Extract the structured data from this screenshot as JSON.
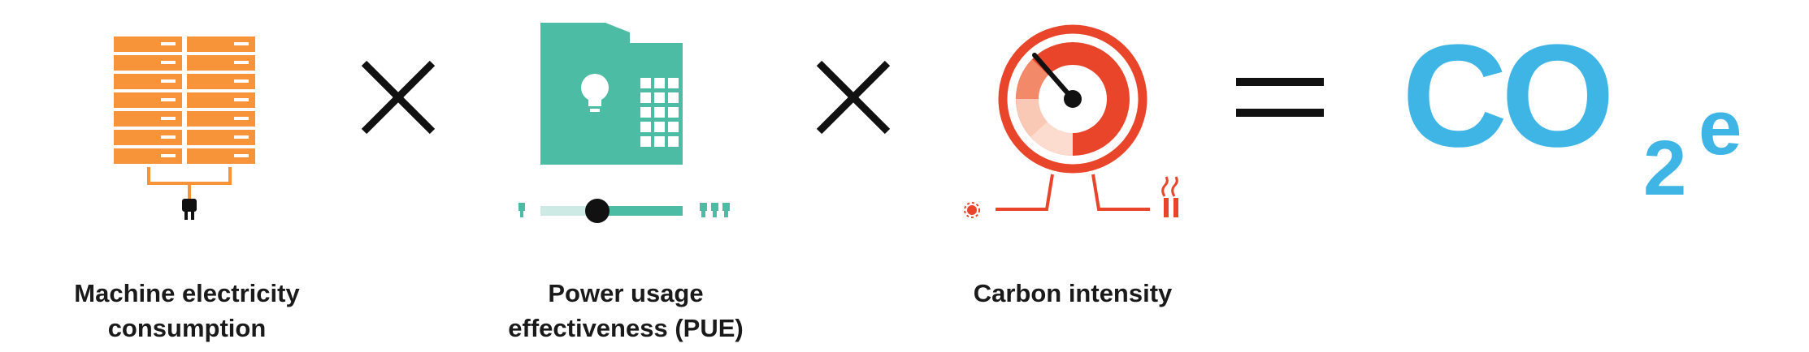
{
  "formula": {
    "terms": [
      {
        "id": "machine",
        "icon": "server-rack-with-plug-icon",
        "label_lines": [
          "Machine electricity",
          "consumption"
        ]
      },
      {
        "id": "pue",
        "icon": "datacenter-building-with-lightbulb-icon",
        "label_lines": [
          "Power usage",
          "effectiveness (PUE)"
        ],
        "slider_level": 0.38
      },
      {
        "id": "carbon",
        "icon": "carbon-intensity-gauge-icon",
        "label_lines": [
          "Carbon intensity"
        ]
      }
    ],
    "operators": [
      "×",
      "×",
      "="
    ],
    "result": {
      "main": "CO",
      "subscript": "2",
      "superscript": "e"
    }
  },
  "colors": {
    "server_orange": "#f7943a",
    "building_teal": "#4dbca4",
    "gauge_red": "#e8452a",
    "gauge_light": "#f9c9b6",
    "result_blue": "#3fb5e6",
    "operator_black": "#111111",
    "label_black": "#1a1a1a"
  }
}
